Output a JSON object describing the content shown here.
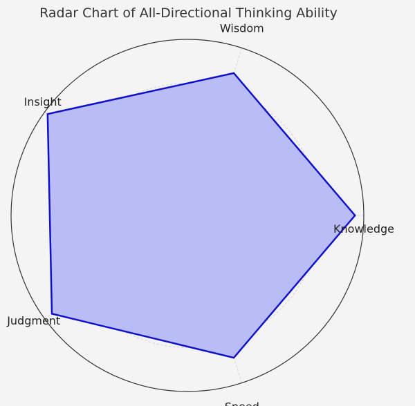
{
  "chart_data": {
    "type": "radar",
    "title": "Radar Chart of All-Directional Thinking Ability",
    "categories": [
      "Knowledge",
      "Wisdom",
      "Insight",
      "Judgment",
      "Speed"
    ],
    "values": [
      9.5,
      8.5,
      9.8,
      9.5,
      8.5
    ],
    "rmax": 10,
    "rings": [
      2.5,
      5,
      7.5
    ],
    "grid": true,
    "colors": {
      "fill": "#b3b6f6",
      "line": "#1010c8",
      "outer": "#333333",
      "grid": "#c8c8c8"
    }
  }
}
